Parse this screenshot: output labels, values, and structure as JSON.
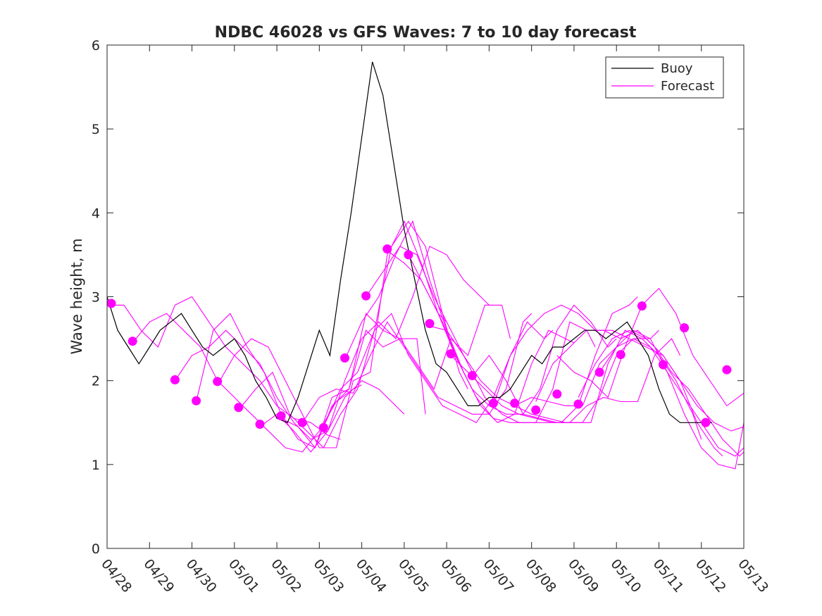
{
  "chart_data": {
    "type": "line",
    "title": "NDBC 46028 vs GFS Waves: 7 to 10 day forecast",
    "xlabel": "",
    "ylabel": "Wave height, m",
    "xlim": [
      0,
      15
    ],
    "ylim": [
      0,
      6
    ],
    "x_tick_labels": [
      "04/28",
      "04/29",
      "04/30",
      "05/01",
      "05/02",
      "05/03",
      "05/04",
      "05/05",
      "05/06",
      "05/07",
      "05/08",
      "05/09",
      "05/10",
      "05/11",
      "05/12",
      "05/13"
    ],
    "y_ticks": [
      0,
      1,
      2,
      3,
      4,
      5,
      6
    ],
    "legend": [
      "Buoy",
      "Forecast"
    ],
    "legend_position": "top-right",
    "colors": {
      "buoy": "#000000",
      "forecast": "#ff00ff"
    },
    "buoy": {
      "name": "Buoy",
      "x": [
        0,
        0.25,
        0.5,
        0.75,
        1.0,
        1.25,
        1.5,
        1.75,
        2.0,
        2.25,
        2.5,
        2.75,
        3.0,
        3.25,
        3.5,
        3.75,
        4.0,
        4.25,
        4.5,
        4.75,
        5.0,
        5.25,
        5.5,
        5.75,
        6.0,
        6.25,
        6.5,
        6.75,
        7.0,
        7.25,
        7.5,
        7.75,
        8.0,
        8.25,
        8.5,
        8.75,
        9.0,
        9.25,
        9.5,
        9.75,
        10.0,
        10.25,
        10.5,
        10.75,
        11.0,
        11.25,
        11.5,
        11.75,
        12.0,
        12.25,
        12.5,
        12.75,
        13.0,
        13.25,
        13.5,
        13.75,
        14.0,
        14.25
      ],
      "y": [
        3.0,
        2.6,
        2.4,
        2.2,
        2.4,
        2.6,
        2.7,
        2.8,
        2.6,
        2.4,
        2.3,
        2.4,
        2.5,
        2.3,
        2.0,
        1.8,
        1.55,
        1.5,
        1.8,
        2.2,
        2.6,
        2.3,
        3.2,
        4.0,
        4.9,
        5.8,
        5.4,
        4.6,
        3.8,
        3.2,
        2.6,
        2.2,
        2.1,
        1.9,
        1.7,
        1.7,
        1.8,
        1.8,
        1.9,
        2.1,
        2.3,
        2.2,
        2.4,
        2.4,
        2.5,
        2.6,
        2.6,
        2.5,
        2.6,
        2.7,
        2.5,
        2.3,
        1.9,
        1.6,
        1.5,
        1.5,
        1.5,
        1.5
      ]
    },
    "forecast_runs": [
      {
        "x": [
          0,
          0.4,
          0.8,
          1.2,
          1.6,
          2.0,
          2.4,
          2.8,
          3.2,
          3.6,
          4.0,
          4.4,
          4.8,
          5.2,
          5.5
        ],
        "y": [
          2.9,
          2.9,
          2.6,
          2.4,
          2.9,
          3.0,
          2.7,
          2.4,
          2.2,
          2.0,
          1.7,
          1.55,
          1.5,
          1.35,
          1.3
        ]
      },
      {
        "x": [
          0.6,
          1.0,
          1.4,
          1.8,
          2.2,
          2.6,
          3.0,
          3.4,
          3.8,
          4.2,
          4.6,
          5.0,
          5.4,
          5.8,
          6.0
        ],
        "y": [
          2.45,
          2.7,
          2.8,
          2.6,
          2.4,
          2.0,
          1.8,
          1.6,
          1.4,
          1.2,
          1.15,
          1.4,
          1.75,
          1.9,
          1.95
        ]
      },
      {
        "x": [
          1.6,
          2.0,
          2.4,
          2.8,
          3.2,
          3.6,
          4.0,
          4.4,
          4.8,
          5.2,
          5.6,
          6.0,
          6.4,
          6.8,
          7.0
        ],
        "y": [
          2.0,
          2.3,
          2.4,
          2.6,
          2.4,
          2.2,
          1.8,
          1.5,
          1.3,
          1.4,
          1.8,
          2.0,
          1.9,
          1.7,
          1.6
        ]
      },
      {
        "x": [
          2.1,
          2.5,
          2.9,
          3.3,
          3.7,
          4.1,
          4.5,
          4.9,
          5.3,
          5.7,
          6.1,
          6.5,
          6.9,
          7.3,
          7.5
        ],
        "y": [
          1.75,
          2.6,
          2.8,
          2.4,
          2.1,
          1.6,
          1.3,
          1.2,
          1.7,
          1.9,
          2.8,
          2.6,
          2.5,
          2.5,
          1.6
        ]
      },
      {
        "x": [
          2.6,
          3.0,
          3.4,
          3.8,
          4.2,
          4.6,
          5.0,
          5.4,
          5.8,
          6.2,
          6.6,
          7.0,
          7.4,
          7.8,
          8.0
        ],
        "y": [
          1.95,
          2.3,
          2.5,
          2.4,
          2.0,
          1.6,
          1.2,
          1.2,
          2.0,
          2.1,
          3.5,
          3.9,
          3.4,
          2.8,
          2.7
        ]
      },
      {
        "x": [
          3.1,
          3.5,
          3.9,
          4.3,
          4.7,
          5.1,
          5.5,
          5.9,
          6.3,
          6.7,
          7.1,
          7.5,
          7.9,
          8.3,
          8.5
        ],
        "y": [
          1.65,
          1.9,
          2.1,
          1.6,
          1.4,
          1.2,
          1.6,
          1.9,
          2.6,
          3.6,
          3.9,
          3.6,
          2.8,
          2.1,
          1.9
        ]
      },
      {
        "x": [
          3.6,
          4.0,
          4.4,
          4.8,
          5.2,
          5.6,
          6.0,
          6.4,
          6.8,
          7.2,
          7.6,
          8.0,
          8.4,
          8.8,
          9.0
        ],
        "y": [
          1.45,
          1.6,
          1.4,
          1.15,
          1.4,
          2.0,
          2.5,
          2.7,
          2.5,
          3.0,
          3.6,
          3.5,
          3.2,
          3.0,
          2.9
        ]
      },
      {
        "x": [
          4.1,
          4.5,
          4.9,
          5.3,
          5.7,
          6.1,
          6.5,
          6.9,
          7.3,
          7.7,
          8.1,
          8.5,
          8.9,
          9.3,
          9.5
        ],
        "y": [
          1.55,
          1.45,
          1.2,
          1.8,
          1.9,
          2.6,
          2.4,
          2.5,
          2.2,
          1.9,
          2.5,
          2.3,
          2.9,
          2.9,
          2.5
        ]
      },
      {
        "x": [
          4.6,
          5.0,
          5.4,
          5.8,
          6.2,
          6.6,
          7.0,
          7.4,
          7.8,
          8.2,
          8.6,
          9.0,
          9.4,
          9.8,
          10.0
        ],
        "y": [
          1.5,
          1.8,
          1.9,
          1.85,
          2.3,
          2.7,
          2.4,
          2.1,
          1.8,
          1.7,
          1.6,
          1.6,
          1.9,
          2.7,
          2.8
        ]
      },
      {
        "x": [
          5.1,
          5.5,
          5.9,
          6.3,
          6.7,
          7.1,
          7.5,
          7.9,
          8.3,
          8.7,
          9.1,
          9.5,
          9.9,
          10.3,
          10.5
        ],
        "y": [
          1.45,
          1.9,
          2.1,
          2.6,
          2.8,
          2.3,
          2.0,
          1.7,
          1.6,
          1.5,
          1.8,
          2.3,
          2.7,
          2.5,
          2.6
        ]
      },
      {
        "x": [
          5.6,
          6.0,
          6.4,
          6.8,
          7.2,
          7.6,
          8.0,
          8.4,
          8.8,
          9.2,
          9.6,
          10.0,
          10.4,
          10.8,
          11.0
        ],
        "y": [
          2.25,
          2.7,
          3.0,
          3.5,
          3.9,
          3.2,
          2.6,
          2.1,
          1.7,
          1.5,
          1.6,
          2.2,
          2.6,
          2.5,
          2.45
        ]
      },
      {
        "x": [
          6.1,
          6.5,
          6.9,
          7.3,
          7.7,
          8.1,
          8.5,
          8.9,
          9.3,
          9.7,
          10.1,
          10.5,
          10.9,
          11.3,
          11.5
        ],
        "y": [
          3.0,
          3.3,
          3.6,
          3.5,
          3.0,
          2.6,
          2.2,
          1.8,
          1.6,
          1.5,
          1.5,
          1.9,
          2.7,
          2.6,
          2.4
        ]
      },
      {
        "x": [
          6.6,
          7.0,
          7.4,
          7.8,
          8.2,
          8.6,
          9.0,
          9.4,
          9.8,
          10.2,
          10.6,
          11.0,
          11.4,
          11.8,
          12.0
        ],
        "y": [
          3.55,
          3.4,
          3.2,
          2.8,
          2.3,
          1.9,
          1.7,
          1.6,
          1.6,
          1.9,
          2.6,
          2.9,
          2.7,
          2.4,
          2.5
        ]
      },
      {
        "x": [
          7.1,
          7.5,
          7.9,
          8.3,
          8.7,
          9.1,
          9.5,
          9.9,
          10.3,
          10.7,
          11.1,
          11.5,
          11.9,
          12.3,
          12.5
        ],
        "y": [
          3.5,
          3.1,
          2.7,
          2.2,
          1.8,
          1.55,
          1.5,
          1.5,
          1.5,
          1.5,
          1.7,
          2.3,
          2.8,
          2.9,
          3.0
        ]
      },
      {
        "x": [
          7.6,
          8.0,
          8.4,
          8.8,
          9.2,
          9.6,
          10.0,
          10.4,
          10.8,
          11.2,
          11.6,
          12.0,
          12.4,
          12.8,
          13.0
        ],
        "y": [
          2.65,
          2.6,
          2.3,
          2.0,
          1.8,
          1.7,
          1.6,
          1.55,
          1.5,
          1.5,
          1.8,
          2.3,
          2.5,
          2.5,
          2.6
        ]
      },
      {
        "x": [
          8.1,
          8.5,
          8.9,
          9.3,
          9.7,
          10.1,
          10.5,
          10.9,
          11.3,
          11.7,
          12.1,
          12.5,
          12.9,
          13.3,
          13.5
        ],
        "y": [
          2.3,
          2.1,
          1.9,
          1.7,
          1.6,
          1.55,
          1.5,
          1.5,
          1.7,
          1.8,
          1.75,
          1.75,
          2.3,
          2.5,
          2.3
        ]
      },
      {
        "x": [
          8.6,
          9.0,
          9.4,
          9.8,
          10.2,
          10.6,
          11.0,
          11.4,
          11.8,
          12.2,
          12.6,
          13.0,
          13.4,
          13.8,
          14.0
        ],
        "y": [
          2.05,
          2.3,
          2.0,
          1.6,
          1.55,
          1.5,
          1.5,
          1.5,
          2.2,
          2.6,
          2.5,
          2.3,
          2.0,
          1.6,
          1.3
        ]
      },
      {
        "x": [
          9.1,
          9.5,
          9.9,
          10.3,
          10.7,
          11.1,
          11.5,
          11.9,
          12.3,
          12.7,
          13.1,
          13.5,
          13.9,
          14.3,
          14.5
        ],
        "y": [
          1.7,
          2.3,
          2.6,
          2.8,
          2.9,
          2.8,
          2.6,
          2.6,
          2.5,
          2.4,
          2.3,
          2.0,
          1.5,
          1.2,
          1.1
        ]
      },
      {
        "x": [
          9.6,
          10.0,
          10.4,
          10.8,
          11.2,
          11.6,
          12.0,
          12.4,
          12.8,
          13.2,
          13.6,
          14.0,
          14.4,
          14.8,
          15.0
        ],
        "y": [
          1.7,
          1.8,
          1.75,
          1.7,
          1.7,
          2.2,
          2.4,
          2.6,
          2.5,
          2.1,
          1.6,
          1.2,
          1.0,
          0.95,
          1.5
        ]
      },
      {
        "x": [
          10.1,
          10.5,
          10.9,
          11.3,
          11.7,
          12.1,
          12.5,
          12.9,
          13.3,
          13.7,
          14.1,
          14.5,
          14.9,
          15.0
        ],
        "y": [
          1.75,
          2.2,
          2.4,
          2.6,
          2.6,
          2.5,
          2.6,
          2.4,
          2.1,
          1.9,
          1.6,
          1.3,
          1.1,
          1.15
        ]
      },
      {
        "x": [
          10.6,
          11.0,
          11.4,
          11.8,
          12.2,
          12.6,
          13.0,
          13.4,
          13.8,
          14.2,
          14.6,
          15.0
        ],
        "y": [
          2.3,
          2.1,
          2.0,
          1.8,
          2.4,
          2.9,
          3.1,
          2.8,
          2.3,
          2.0,
          1.7,
          1.85
        ]
      },
      {
        "x": [
          11.1,
          11.5,
          11.9,
          12.3,
          12.7,
          13.1,
          13.5,
          13.9,
          14.3,
          14.7,
          15.0
        ],
        "y": [
          1.8,
          2.2,
          2.5,
          2.6,
          2.5,
          2.3,
          2.0,
          1.7,
          1.5,
          1.4,
          1.45
        ]
      },
      {
        "x": [
          11.6,
          12.0,
          12.4,
          12.8,
          13.2,
          13.6,
          14.0,
          14.4,
          14.8,
          15.0
        ],
        "y": [
          2.1,
          2.4,
          2.5,
          2.4,
          2.1,
          1.8,
          1.5,
          1.2,
          1.1,
          1.2
        ]
      }
    ],
    "forecast_markers": {
      "name": "Forecast",
      "x": [
        0.1,
        0.6,
        1.6,
        2.1,
        2.6,
        3.1,
        3.6,
        4.1,
        4.6,
        5.1,
        5.6,
        6.1,
        6.6,
        7.1,
        7.6,
        8.1,
        8.6,
        9.1,
        9.6,
        10.1,
        10.6,
        11.1,
        11.6,
        12.1,
        12.6,
        13.1,
        13.6,
        14.1,
        14.6
      ],
      "y": [
        2.92,
        2.47,
        2.01,
        1.76,
        1.99,
        1.68,
        1.48,
        1.58,
        1.5,
        1.44,
        2.27,
        3.01,
        3.57,
        3.5,
        2.68,
        2.32,
        2.06,
        1.73,
        1.73,
        1.65,
        1.84,
        1.72,
        2.1,
        2.31,
        2.89,
        2.19,
        2.63,
        1.5,
        2.13
      ]
    }
  }
}
